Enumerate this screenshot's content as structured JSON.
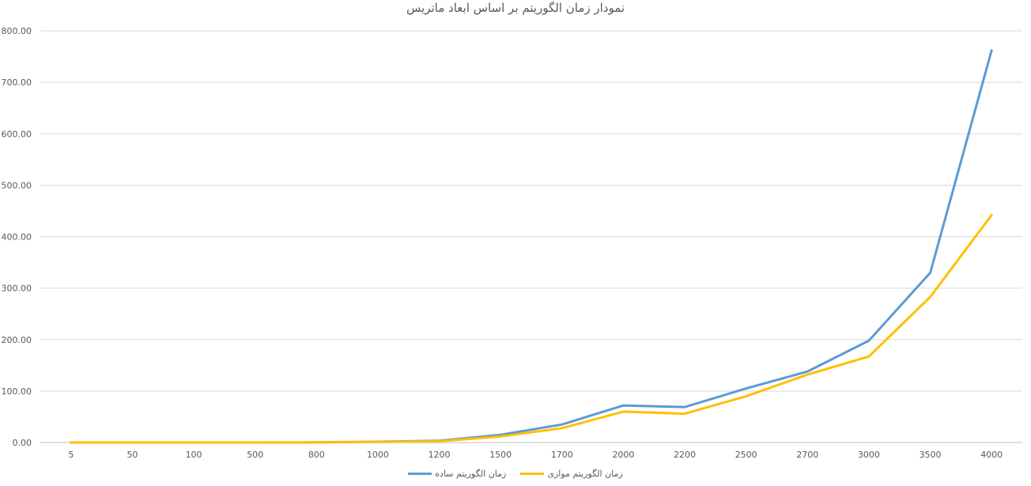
{
  "chart_data": {
    "type": "line",
    "title": "نمودار زمان الگوریتم بر اساس ابعاد ماتریس",
    "xlabel": "",
    "ylabel": "",
    "categories": [
      "5",
      "50",
      "100",
      "500",
      "800",
      "1000",
      "1200",
      "1500",
      "1700",
      "2000",
      "2200",
      "2500",
      "2700",
      "3000",
      "3500",
      "4000"
    ],
    "y_ticks": [
      "0.00",
      "100.00",
      "200.00",
      "300.00",
      "400.00",
      "500.00",
      "600.00",
      "700.00",
      "800.00"
    ],
    "ylim": [
      0,
      800
    ],
    "grid": true,
    "legend_position": "bottom",
    "series": [
      {
        "name": "زمان الگوریتم ساده",
        "color": "#5b9bd5",
        "values": [
          0,
          0,
          0,
          0,
          0.3,
          1.5,
          3.5,
          15,
          35,
          72,
          69,
          105,
          138,
          198,
          330,
          762
        ]
      },
      {
        "name": "زمان الگوریتم موازی",
        "color": "#ffc000",
        "values": [
          0,
          0,
          0,
          0,
          0.2,
          1.0,
          2.5,
          12,
          28,
          60,
          56,
          90,
          132,
          167,
          283,
          442
        ]
      }
    ]
  }
}
